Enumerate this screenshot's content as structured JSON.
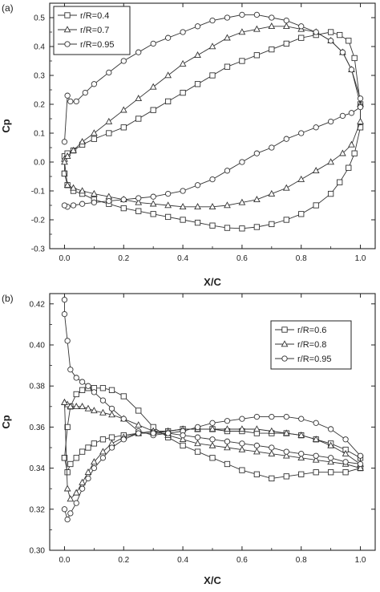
{
  "chart_data": [
    {
      "type": "line",
      "panel_label": "(a)",
      "xlabel": "X/C",
      "ylabel": "Cp",
      "xlim": [
        -0.05,
        1.05
      ],
      "ylim": [
        -0.3,
        0.55
      ],
      "xticks": [
        "0.0",
        "0.2",
        "0.4",
        "0.6",
        "0.8",
        "1.0"
      ],
      "yticks": [
        "-0.3",
        "-0.2",
        "-0.1",
        "0.0",
        "0.1",
        "0.2",
        "0.3",
        "0.4",
        "0.5"
      ],
      "xtick_values": [
        0,
        0.2,
        0.4,
        0.6,
        0.8,
        1.0
      ],
      "ytick_values": [
        -0.3,
        -0.2,
        -0.1,
        0.0,
        0.1,
        0.2,
        0.3,
        0.4,
        0.5
      ],
      "legend_position": "top-left",
      "series": [
        {
          "name": "r/R=0.4",
          "marker": "square",
          "x": [
            0.0,
            0.0,
            0.01,
            0.03,
            0.06,
            0.1,
            0.15,
            0.2,
            0.25,
            0.3,
            0.35,
            0.4,
            0.45,
            0.5,
            0.55,
            0.6,
            0.65,
            0.7,
            0.75,
            0.8,
            0.85,
            0.9,
            0.93,
            0.96,
            0.98,
            1.0,
            1.0,
            0.98,
            0.96,
            0.93,
            0.9,
            0.85,
            0.8,
            0.75,
            0.7,
            0.65,
            0.6,
            0.55,
            0.5,
            0.45,
            0.4,
            0.35,
            0.3,
            0.25,
            0.2,
            0.15,
            0.1,
            0.06,
            0.03,
            0.01,
            0.0
          ],
          "y": [
            -0.04,
            0.02,
            0.03,
            0.04,
            0.06,
            0.08,
            0.1,
            0.12,
            0.15,
            0.18,
            0.21,
            0.24,
            0.27,
            0.3,
            0.33,
            0.35,
            0.37,
            0.39,
            0.41,
            0.43,
            0.44,
            0.45,
            0.44,
            0.42,
            0.36,
            0.2,
            0.12,
            0.03,
            -0.02,
            -0.07,
            -0.11,
            -0.15,
            -0.18,
            -0.2,
            -0.215,
            -0.225,
            -0.23,
            -0.228,
            -0.22,
            -0.21,
            -0.2,
            -0.19,
            -0.18,
            -0.17,
            -0.16,
            -0.145,
            -0.13,
            -0.11,
            -0.1,
            -0.08,
            -0.04
          ]
        },
        {
          "name": "r/R=0.7",
          "marker": "triangle",
          "x": [
            0.0,
            0.01,
            0.03,
            0.06,
            0.1,
            0.15,
            0.2,
            0.25,
            0.3,
            0.35,
            0.4,
            0.45,
            0.5,
            0.55,
            0.6,
            0.65,
            0.7,
            0.75,
            0.8,
            0.85,
            0.9,
            0.94,
            0.97,
            1.0,
            1.0,
            0.97,
            0.94,
            0.9,
            0.85,
            0.8,
            0.75,
            0.7,
            0.65,
            0.6,
            0.55,
            0.5,
            0.45,
            0.4,
            0.35,
            0.3,
            0.25,
            0.2,
            0.15,
            0.1,
            0.06,
            0.03,
            0.01,
            0.0
          ],
          "y": [
            0.01,
            0.02,
            0.04,
            0.07,
            0.1,
            0.14,
            0.18,
            0.22,
            0.26,
            0.3,
            0.34,
            0.37,
            0.4,
            0.43,
            0.45,
            0.46,
            0.47,
            0.47,
            0.46,
            0.45,
            0.42,
            0.38,
            0.32,
            0.2,
            0.14,
            0.06,
            0.03,
            0.0,
            -0.03,
            -0.06,
            -0.09,
            -0.11,
            -0.13,
            -0.14,
            -0.15,
            -0.155,
            -0.155,
            -0.155,
            -0.15,
            -0.145,
            -0.14,
            -0.13,
            -0.12,
            -0.11,
            -0.1,
            -0.09,
            -0.08,
            0.0
          ]
        },
        {
          "name": "r/R=0.95",
          "marker": "circle",
          "x": [
            0.0,
            0.01,
            0.02,
            0.04,
            0.07,
            0.1,
            0.15,
            0.2,
            0.25,
            0.3,
            0.35,
            0.4,
            0.45,
            0.5,
            0.55,
            0.6,
            0.65,
            0.7,
            0.75,
            0.8,
            0.85,
            0.9,
            0.94,
            0.97,
            1.0,
            1.0,
            0.97,
            0.94,
            0.9,
            0.85,
            0.8,
            0.75,
            0.7,
            0.65,
            0.6,
            0.55,
            0.5,
            0.45,
            0.4,
            0.35,
            0.3,
            0.25,
            0.2,
            0.15,
            0.1,
            0.06,
            0.03,
            0.01,
            0.0
          ],
          "y": [
            0.07,
            0.23,
            0.21,
            0.21,
            0.24,
            0.27,
            0.31,
            0.35,
            0.38,
            0.41,
            0.43,
            0.45,
            0.47,
            0.49,
            0.5,
            0.51,
            0.51,
            0.5,
            0.49,
            0.47,
            0.45,
            0.42,
            0.38,
            0.32,
            0.22,
            0.19,
            0.17,
            0.16,
            0.14,
            0.12,
            0.1,
            0.08,
            0.05,
            0.03,
            0.0,
            -0.03,
            -0.06,
            -0.08,
            -0.1,
            -0.11,
            -0.12,
            -0.125,
            -0.13,
            -0.135,
            -0.14,
            -0.145,
            -0.15,
            -0.155,
            -0.15
          ]
        }
      ]
    },
    {
      "type": "line",
      "panel_label": "(b)",
      "xlabel": "X/C",
      "ylabel": "Cp",
      "xlim": [
        -0.05,
        1.05
      ],
      "ylim": [
        0.3,
        0.425
      ],
      "xticks": [
        "0.0",
        "0.2",
        "0.4",
        "0.6",
        "0.8",
        "1.0"
      ],
      "yticks": [
        "0.30",
        "0.32",
        "0.34",
        "0.36",
        "0.38",
        "0.40",
        "0.42"
      ],
      "xtick_values": [
        0,
        0.2,
        0.4,
        0.6,
        0.8,
        1.0
      ],
      "ytick_values": [
        0.3,
        0.32,
        0.34,
        0.36,
        0.38,
        0.4,
        0.42
      ],
      "legend_position": "top-right",
      "series": [
        {
          "name": "r/R=0.6",
          "marker": "square",
          "x": [
            0.0,
            0.01,
            0.02,
            0.04,
            0.06,
            0.08,
            0.1,
            0.13,
            0.16,
            0.2,
            0.25,
            0.3,
            0.35,
            0.4,
            0.45,
            0.5,
            0.55,
            0.6,
            0.65,
            0.7,
            0.75,
            0.8,
            0.85,
            0.9,
            0.95,
            1.0,
            1.0,
            0.95,
            0.9,
            0.85,
            0.8,
            0.75,
            0.7,
            0.65,
            0.6,
            0.55,
            0.5,
            0.45,
            0.4,
            0.35,
            0.3,
            0.25,
            0.2,
            0.16,
            0.13,
            0.1,
            0.08,
            0.06,
            0.04,
            0.02,
            0.01,
            0.0
          ],
          "y": [
            0.345,
            0.36,
            0.37,
            0.376,
            0.378,
            0.379,
            0.379,
            0.379,
            0.378,
            0.375,
            0.368,
            0.36,
            0.355,
            0.351,
            0.348,
            0.345,
            0.342,
            0.339,
            0.337,
            0.335,
            0.336,
            0.337,
            0.338,
            0.338,
            0.338,
            0.34,
            0.345,
            0.349,
            0.352,
            0.354,
            0.356,
            0.357,
            0.357,
            0.357,
            0.358,
            0.358,
            0.359,
            0.359,
            0.359,
            0.358,
            0.357,
            0.357,
            0.356,
            0.355,
            0.354,
            0.352,
            0.35,
            0.348,
            0.345,
            0.342,
            0.338,
            0.345
          ]
        },
        {
          "name": "r/R=0.8",
          "marker": "triangle",
          "x": [
            0.0,
            0.01,
            0.02,
            0.04,
            0.06,
            0.08,
            0.1,
            0.13,
            0.16,
            0.2,
            0.25,
            0.3,
            0.35,
            0.4,
            0.45,
            0.5,
            0.55,
            0.6,
            0.65,
            0.7,
            0.75,
            0.8,
            0.85,
            0.9,
            0.95,
            1.0,
            1.0,
            0.95,
            0.9,
            0.85,
            0.8,
            0.75,
            0.7,
            0.65,
            0.6,
            0.55,
            0.5,
            0.45,
            0.4,
            0.35,
            0.3,
            0.25,
            0.2,
            0.16,
            0.13,
            0.1,
            0.08,
            0.06,
            0.04,
            0.02,
            0.01,
            0.0
          ],
          "y": [
            0.372,
            0.371,
            0.37,
            0.37,
            0.37,
            0.369,
            0.368,
            0.367,
            0.366,
            0.364,
            0.361,
            0.358,
            0.356,
            0.354,
            0.352,
            0.351,
            0.35,
            0.349,
            0.348,
            0.347,
            0.346,
            0.345,
            0.344,
            0.343,
            0.342,
            0.34,
            0.342,
            0.347,
            0.351,
            0.354,
            0.356,
            0.357,
            0.358,
            0.359,
            0.359,
            0.359,
            0.359,
            0.359,
            0.359,
            0.358,
            0.358,
            0.357,
            0.355,
            0.352,
            0.348,
            0.343,
            0.338,
            0.333,
            0.328,
            0.325,
            0.33,
            0.372
          ]
        },
        {
          "name": "r/R=0.95",
          "marker": "circle",
          "x": [
            0.0,
            0.0,
            0.01,
            0.02,
            0.04,
            0.06,
            0.08,
            0.1,
            0.13,
            0.16,
            0.2,
            0.25,
            0.3,
            0.35,
            0.4,
            0.45,
            0.5,
            0.55,
            0.6,
            0.65,
            0.7,
            0.75,
            0.8,
            0.85,
            0.9,
            0.95,
            1.0,
            1.0,
            0.95,
            0.9,
            0.85,
            0.8,
            0.75,
            0.7,
            0.65,
            0.6,
            0.55,
            0.5,
            0.45,
            0.4,
            0.35,
            0.3,
            0.25,
            0.2,
            0.16,
            0.13,
            0.1,
            0.08,
            0.06,
            0.04,
            0.02,
            0.01,
            0.0
          ],
          "y": [
            0.422,
            0.415,
            0.402,
            0.388,
            0.384,
            0.382,
            0.38,
            0.377,
            0.373,
            0.369,
            0.364,
            0.358,
            0.356,
            0.357,
            0.358,
            0.36,
            0.362,
            0.363,
            0.364,
            0.365,
            0.365,
            0.365,
            0.364,
            0.362,
            0.359,
            0.354,
            0.346,
            0.342,
            0.343,
            0.345,
            0.346,
            0.347,
            0.348,
            0.35,
            0.351,
            0.352,
            0.353,
            0.354,
            0.355,
            0.356,
            0.357,
            0.357,
            0.357,
            0.354,
            0.35,
            0.345,
            0.34,
            0.335,
            0.33,
            0.323,
            0.318,
            0.315,
            0.32
          ]
        }
      ]
    }
  ]
}
